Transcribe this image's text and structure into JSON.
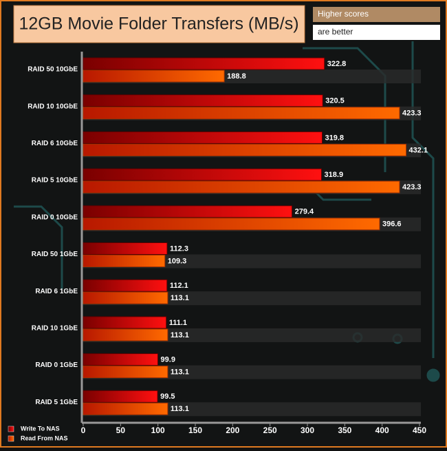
{
  "chart_data": {
    "type": "hbar",
    "title": "12GB Movie Folder Transfers (MB/s)",
    "note_top": "Higher scores",
    "note_bottom": "are better",
    "categories": [
      "RAID 50 10GbE",
      "RAID 10 10GbE",
      "RAID 6 10GbE",
      "RAID 5 10GbE",
      "RAID 0 10GbE",
      "RAID 50 1GbE",
      "RAID 6 1GbE",
      "RAID 10 1GbE",
      "RAID 0 1GbE",
      "RAID 5 1GbE"
    ],
    "series": [
      {
        "name": "Write To NAS",
        "color": "#e01010",
        "values": [
          322.8,
          320.5,
          319.8,
          318.9,
          279.4,
          112.3,
          112.1,
          111.1,
          99.9,
          99.5
        ]
      },
      {
        "name": "Read From NAS",
        "color": "#ff6a00",
        "values": [
          188.8,
          423.3,
          432.1,
          423.3,
          396.6,
          109.3,
          113.1,
          113.1,
          113.1,
          113.1
        ]
      }
    ],
    "xlim": [
      0,
      450
    ],
    "xticks": [
      0,
      50,
      100,
      150,
      200,
      250,
      300,
      350,
      400,
      450
    ]
  }
}
